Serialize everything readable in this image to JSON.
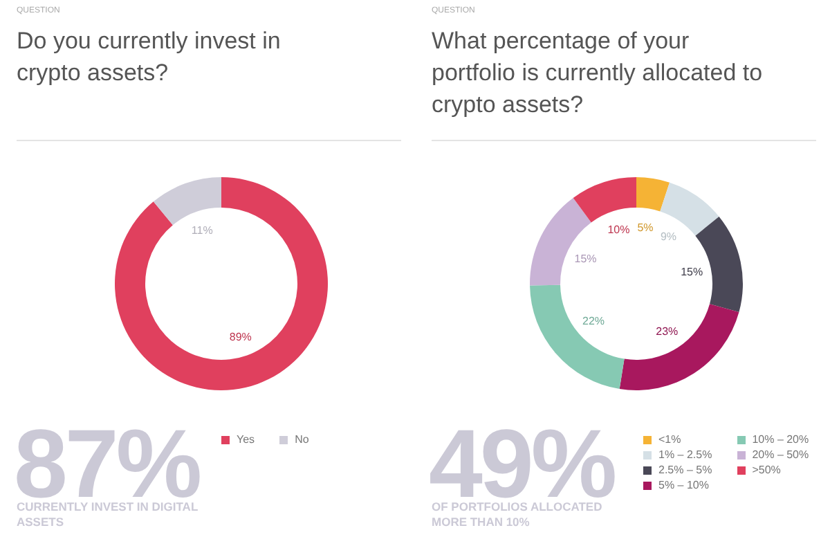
{
  "chart_data": [
    {
      "type": "donut",
      "subtitle": "QUESTION",
      "title": "Do you currently invest in crypto assets?",
      "categories": [
        "Yes",
        "No"
      ],
      "values": [
        89,
        11
      ],
      "colors": [
        "#e0405e",
        "#cfcdd9"
      ],
      "value_labels": [
        "89%",
        "11%"
      ],
      "legend": "bottom",
      "annotations": [
        "87%",
        "CURRENTLY INVEST IN DIGITAL ASSETS"
      ]
    },
    {
      "type": "donut",
      "subtitle": "QUESTION",
      "title": "What percentage of your portfolio is currently allocated to crypto assets?",
      "categories": [
        "<1%",
        "1% – 2.5%",
        "2.5% – 5%",
        "5% – 10%",
        "10% – 20%",
        "20% – 50%",
        ">50%"
      ],
      "values": [
        5,
        9,
        15,
        23,
        22,
        15,
        10
      ],
      "colors": [
        "#f5b335",
        "#d5e0e6",
        "#4a4857",
        "#a8185e",
        "#86c9b3",
        "#c9b3d6",
        "#e0405e"
      ],
      "value_labels": [
        "5%",
        "9%",
        "15%",
        "23%",
        "22%",
        "15%",
        "10%"
      ],
      "legend": "bottom",
      "annotations": [
        "49%",
        "OF PORTFOLIOS ALLOCATED MORE THAN 10%"
      ]
    }
  ]
}
